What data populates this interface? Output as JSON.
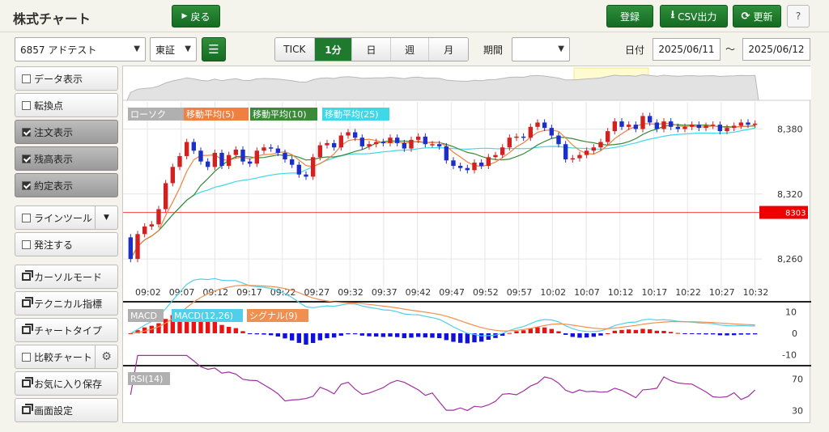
{
  "app": {
    "title": "株式チャート"
  },
  "toolbar": {
    "back_label": "戻る",
    "register_label": "登録",
    "csv_label": "CSV出力",
    "refresh_label": "更新",
    "help_label": "?"
  },
  "controls": {
    "stock_select": "6857 アドテスト",
    "market_select": "東証",
    "period_label": "期間",
    "period_value": "",
    "date_label": "日付",
    "date_from": "2025/06/11",
    "date_sep": "〜",
    "date_to": "2025/06/12",
    "intervals": [
      {
        "label": "TICK",
        "active": false
      },
      {
        "label": "1分",
        "active": true
      },
      {
        "label": "日",
        "active": false
      },
      {
        "label": "週",
        "active": false
      },
      {
        "label": "月",
        "active": false
      }
    ]
  },
  "sidebar": {
    "items": [
      {
        "label": "データ表示",
        "kind": "check",
        "checked": false
      },
      {
        "label": "転換点",
        "kind": "check",
        "checked": false
      },
      {
        "label": "注文表示",
        "kind": "check",
        "checked": true
      },
      {
        "label": "残高表示",
        "kind": "check",
        "checked": true
      },
      {
        "label": "約定表示",
        "kind": "check",
        "checked": true
      },
      {
        "label": "ラインツール",
        "kind": "check",
        "checked": false
      },
      {
        "label": "発注する",
        "kind": "check",
        "checked": false
      },
      {
        "label": "カーソルモード",
        "kind": "window"
      },
      {
        "label": "テクニカル指標",
        "kind": "window"
      },
      {
        "label": "チャートタイプ",
        "kind": "window"
      },
      {
        "label": "比較チャート",
        "kind": "check",
        "checked": false
      },
      {
        "label": "お気に入り保存",
        "kind": "window"
      },
      {
        "label": "画面設定",
        "kind": "window"
      }
    ]
  },
  "legend": {
    "candle": "ローソク",
    "ma5": "移動平均(5)",
    "ma10": "移動平均(10)",
    "ma25": "移動平均(25)",
    "macd": "MACD",
    "macd_line": "MACD(12,26)",
    "signal": "シグナル(9)",
    "rsi": "RSI(14)"
  },
  "colors": {
    "up": "#d32020",
    "down": "#1c2fc8",
    "ma5": "#f08040",
    "ma10": "#3a8a3a",
    "ma25": "#40d8e8",
    "macd": "#50d0e8",
    "signal": "#f09050",
    "rsi": "#a030a0",
    "price_line": "#ff4040"
  },
  "chart_data": [
    {
      "type": "candlestick",
      "title": "",
      "x_ticks": [
        "09:02",
        "09:07",
        "09:12",
        "09:17",
        "09:22",
        "09:27",
        "09:32",
        "09:37",
        "09:42",
        "09:47",
        "09:52",
        "09:57",
        "10:02",
        "10:07",
        "10:12",
        "10:17",
        "10:22",
        "10:27",
        "10:32"
      ],
      "y_ticks": [
        8260,
        8320,
        8380
      ],
      "ylim": [
        8225,
        8405
      ],
      "current_price": 8303,
      "close": [
        8260,
        8283,
        8290,
        8292,
        8306,
        8330,
        8345,
        8355,
        8368,
        8360,
        8350,
        8345,
        8358,
        8346,
        8356,
        8361,
        8350,
        8348,
        8360,
        8363,
        8362,
        8358,
        8352,
        8347,
        8338,
        8336,
        8354,
        8365,
        8367,
        8363,
        8374,
        8377,
        8372,
        8364,
        8366,
        8368,
        8367,
        8372,
        8367,
        8362,
        8370,
        8373,
        8366,
        8366,
        8364,
        8351,
        8346,
        8344,
        8342,
        8349,
        8346,
        8354,
        8356,
        8363,
        8372,
        8373,
        8372,
        8382,
        8386,
        8381,
        8374,
        8366,
        8352,
        8353,
        8356,
        8360,
        8363,
        8368,
        8378,
        8387,
        8382,
        8384,
        8380,
        8392,
        8386,
        8380,
        8387,
        8382,
        8380,
        8382,
        8384,
        8381,
        8383,
        8384,
        8378,
        8381,
        8383,
        8386,
        8384,
        8385
      ]
    },
    {
      "type": "line",
      "title": "",
      "y_ticks": [
        10,
        0,
        -10
      ],
      "ylim": [
        -14,
        14
      ]
    },
    {
      "type": "line",
      "title": "",
      "y_ticks": [
        70,
        30
      ],
      "ylim": [
        15,
        85
      ]
    }
  ]
}
